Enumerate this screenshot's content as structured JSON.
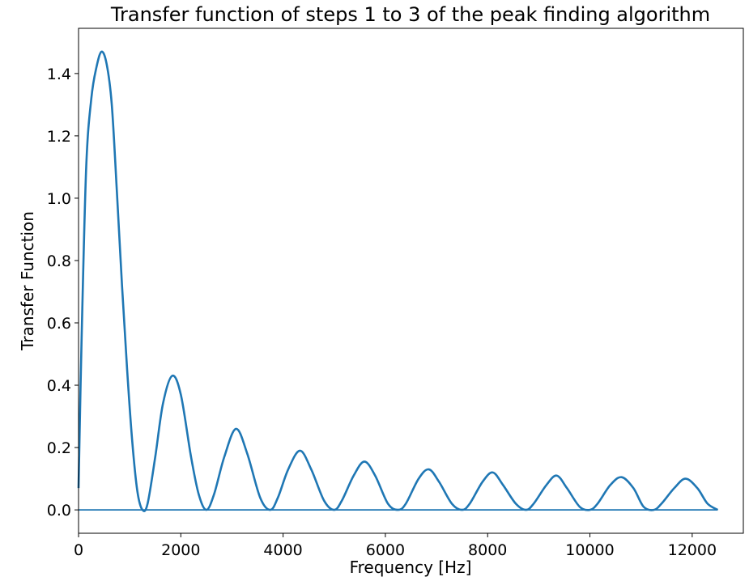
{
  "chart_data": {
    "type": "line",
    "title": "Transfer function of steps 1 to 3 of the peak finding algorithm",
    "xlabel": "Frequency [Hz]",
    "ylabel": "Transfer Function",
    "xlim": [
      0,
      13000
    ],
    "ylim": [
      -0.075,
      1.545
    ],
    "xticks": [
      0,
      2000,
      4000,
      6000,
      8000,
      10000,
      12000
    ],
    "xtick_labels": [
      "0",
      "2000",
      "4000",
      "6000",
      "8000",
      "10000",
      "12000"
    ],
    "yticks": [
      0.0,
      0.2,
      0.4,
      0.6,
      0.8,
      1.0,
      1.2,
      1.4
    ],
    "ytick_labels": [
      "0.0",
      "0.2",
      "0.4",
      "0.6",
      "0.8",
      "1.0",
      "1.2",
      "1.4"
    ],
    "grid": false,
    "line_color": "#1f77b4",
    "series": [
      {
        "x": [
          0,
          60,
          150,
          250,
          350,
          450,
          550,
          650,
          750,
          850,
          950,
          1050,
          1150,
          1250,
          1350,
          1500,
          1650,
          1830,
          2000,
          2200,
          2350,
          2500,
          2650,
          2850,
          3080,
          3300,
          3550,
          3750,
          3900,
          4100,
          4330,
          4550,
          4800,
          5000,
          5150,
          5380,
          5590,
          5800,
          6050,
          6250,
          6400,
          6650,
          6850,
          7050,
          7300,
          7500,
          7650,
          7900,
          8100,
          8300,
          8550,
          8750,
          8900,
          9150,
          9350,
          9550,
          9800,
          10000,
          10150,
          10400,
          10620,
          10850,
          11050,
          11250,
          11400,
          11650,
          11870,
          12100,
          12300,
          12500
        ],
        "y": [
          0.07,
          0.55,
          1.1,
          1.32,
          1.42,
          1.47,
          1.43,
          1.3,
          1.02,
          0.72,
          0.45,
          0.22,
          0.06,
          0.0,
          0.02,
          0.17,
          0.34,
          0.43,
          0.37,
          0.17,
          0.05,
          0.0,
          0.05,
          0.17,
          0.26,
          0.18,
          0.04,
          0.0,
          0.04,
          0.13,
          0.19,
          0.13,
          0.03,
          0.0,
          0.03,
          0.11,
          0.155,
          0.11,
          0.02,
          0.0,
          0.02,
          0.1,
          0.13,
          0.09,
          0.02,
          0.0,
          0.02,
          0.09,
          0.12,
          0.08,
          0.02,
          0.0,
          0.02,
          0.08,
          0.11,
          0.07,
          0.01,
          0.0,
          0.02,
          0.08,
          0.105,
          0.07,
          0.01,
          0.0,
          0.02,
          0.07,
          0.1,
          0.07,
          0.02,
          0.0
        ]
      },
      {
        "x": [
          0,
          12500
        ],
        "y": [
          0.0,
          0.0
        ]
      }
    ]
  }
}
